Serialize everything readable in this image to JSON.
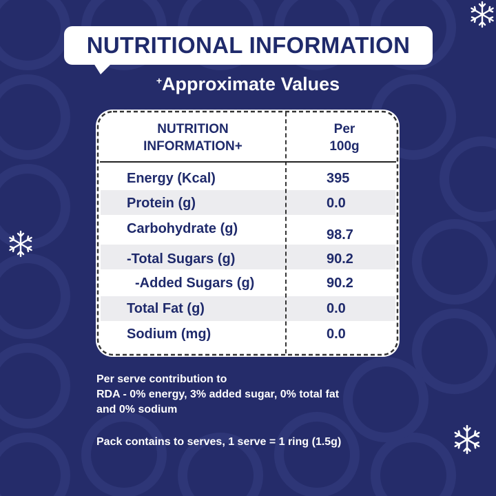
{
  "title": "NUTRITIONAL INFORMATION",
  "subtitle": {
    "mark": "+",
    "text": "Approximate Values"
  },
  "table": {
    "header": {
      "col1_line1": "NUTRITION",
      "col1_line2": "INFORMATION+",
      "col2_line1": "Per",
      "col2_line2": "100g"
    },
    "rows": [
      {
        "label": "Energy (Kcal)",
        "value": "395"
      },
      {
        "label": "Protein (g)",
        "value": "0.0"
      },
      {
        "label": "Carbohydrate (g)",
        "value": "98.7"
      },
      {
        "label": "-Total Sugars (g)",
        "value": "90.2"
      },
      {
        "label": "-Added Sugars (g)",
        "value": "90.2"
      },
      {
        "label": "Total Fat (g)",
        "value": "0.0"
      },
      {
        "label": "Sodium (mg)",
        "value": "0.0"
      }
    ]
  },
  "footer": {
    "line1": "Per serve contribution to",
    "line2": "RDA - 0% energy, 3% added sugar, 0% total fat",
    "line3": "and 0% sodium",
    "line4": "Pack contains to serves, 1 serve = 1 ring (1.5g)"
  },
  "colors": {
    "background": "#252c6a",
    "title_text": "#1f2a6b",
    "stripe": "#ececef"
  },
  "icons": [
    "snowflake-icon",
    "snowflake-icon",
    "snowflake-icon"
  ]
}
